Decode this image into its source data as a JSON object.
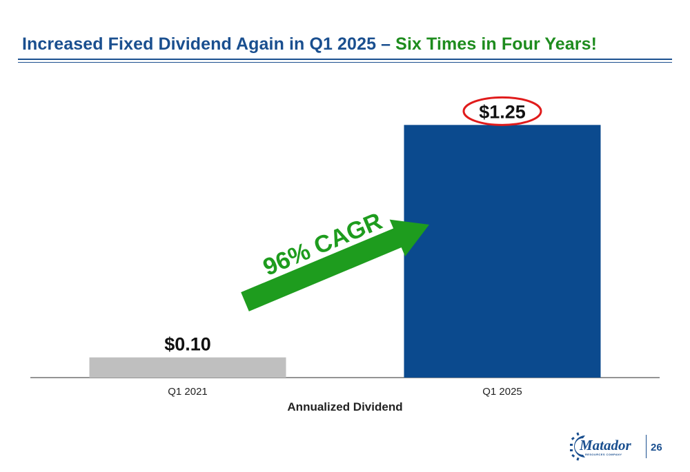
{
  "header": {
    "title_part1": "Increased Fixed Dividend Again in Q1 2025 –",
    "title_part2": "Six Times in Four Years!"
  },
  "chart_data": {
    "type": "bar",
    "categories": [
      "Q1 2021",
      "Q1 2025"
    ],
    "values": [
      0.1,
      1.25
    ],
    "value_labels": [
      "$0.10",
      "$1.25"
    ],
    "bar_colors": [
      "#bfbfbf",
      "#0b4a8e"
    ],
    "xlabel": "Annualized Dividend",
    "ylim": [
      0,
      1.5
    ],
    "grid": false,
    "annotation": {
      "text": "96% CAGR",
      "color": "#1e9c1e",
      "highlight": "$1.25",
      "highlight_color": "#e01b1b"
    }
  },
  "footer": {
    "logo_name": "Matador",
    "logo_subtext": "RESOURCES COMPANY",
    "page_number": "26"
  },
  "colors": {
    "brand_blue": "#1a4f8f",
    "accent_green": "#1e8c1e"
  }
}
